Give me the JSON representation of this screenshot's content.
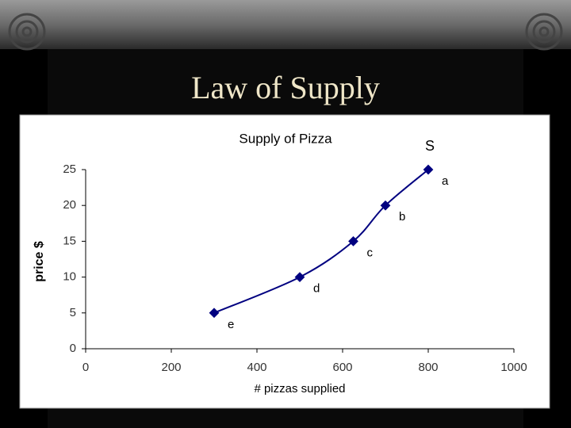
{
  "slide_title": "Law of Supply",
  "chart_data": {
    "type": "line",
    "title": "Supply of Pizza",
    "x_label": "# pizzas supplied",
    "y_label": "price $",
    "x": [
      300,
      500,
      625,
      700,
      800
    ],
    "values": [
      5,
      10,
      15,
      20,
      25
    ],
    "point_labels": [
      "e",
      "d",
      "c",
      "b",
      "a"
    ],
    "curve_label": "S",
    "color": "#000080",
    "xlim": [
      0,
      1000
    ],
    "xticks": [
      0,
      200,
      400,
      600,
      800,
      1000
    ],
    "ylim": [
      0,
      25
    ],
    "yticks": [
      0,
      5,
      10,
      15,
      20,
      25
    ],
    "grid": false
  }
}
